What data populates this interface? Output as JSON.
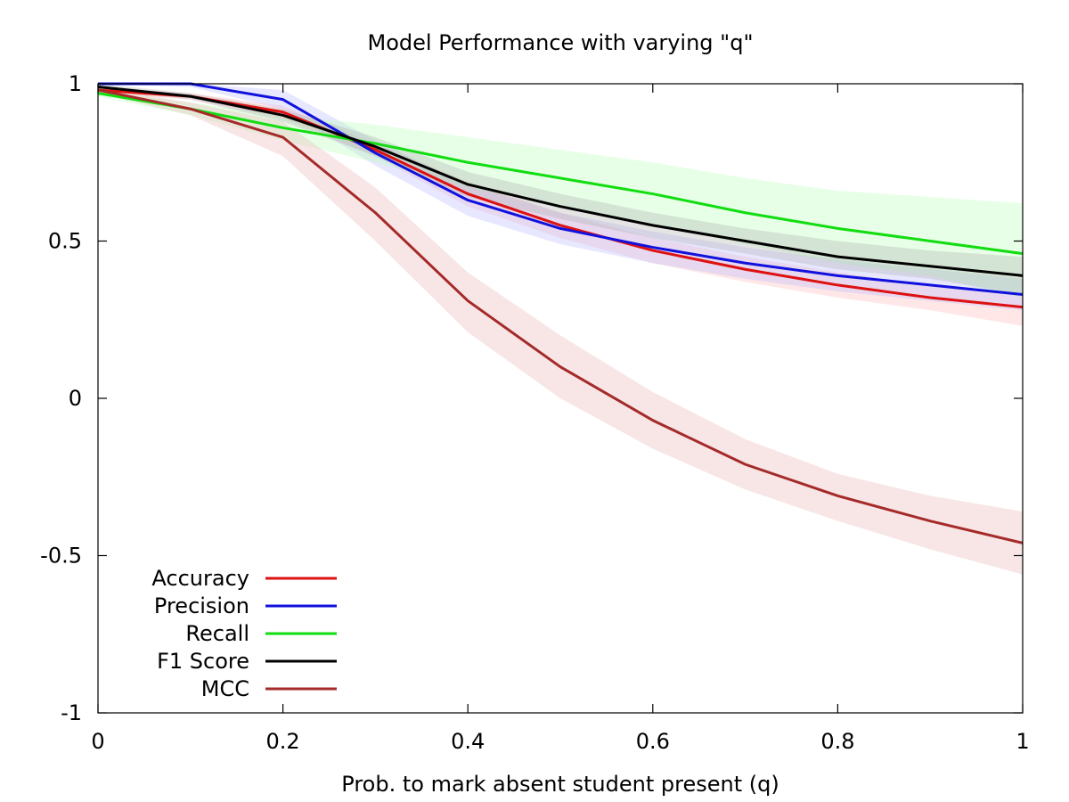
{
  "chart_data": {
    "type": "line",
    "title": "Model Performance with varying \"q\"",
    "xlabel": "Prob. to mark absent student present (q)",
    "ylabel": "",
    "xlim": [
      0,
      1
    ],
    "ylim": [
      -1,
      1
    ],
    "x_ticks": [
      0,
      0.2,
      0.4,
      0.6,
      0.8,
      1
    ],
    "x_tick_labels": [
      "0",
      "0.2",
      "0.4",
      "0.6",
      "0.8",
      "1"
    ],
    "y_ticks": [
      1,
      0.5,
      0,
      -0.5,
      -1
    ],
    "y_tick_labels": [
      "1",
      "0.5",
      "0",
      "-0.5",
      "-1"
    ],
    "legend_position": "bottom-left",
    "grid": false,
    "x": [
      0,
      0.1,
      0.2,
      0.3,
      0.4,
      0.5,
      0.6,
      0.7,
      0.8,
      0.9,
      1.0
    ],
    "series": [
      {
        "name": "Accuracy",
        "color": "#dd1111",
        "band_color": "#ffb3b3",
        "values": [
          0.98,
          0.96,
          0.91,
          0.79,
          0.65,
          0.55,
          0.47,
          0.41,
          0.36,
          0.32,
          0.29
        ],
        "band_low": [
          0.97,
          0.95,
          0.89,
          0.77,
          0.61,
          0.51,
          0.43,
          0.37,
          0.32,
          0.28,
          0.23
        ],
        "band_high": [
          0.99,
          0.97,
          0.93,
          0.81,
          0.69,
          0.59,
          0.51,
          0.45,
          0.4,
          0.36,
          0.33
        ]
      },
      {
        "name": "Precision",
        "color": "#1111dd",
        "band_color": "#b3b3ff",
        "values": [
          1.0,
          1.0,
          0.95,
          0.78,
          0.63,
          0.54,
          0.48,
          0.43,
          0.39,
          0.36,
          0.33
        ],
        "band_low": [
          1.0,
          0.99,
          0.92,
          0.74,
          0.58,
          0.49,
          0.43,
          0.38,
          0.34,
          0.31,
          0.28
        ],
        "band_high": [
          1.0,
          1.0,
          0.98,
          0.82,
          0.68,
          0.59,
          0.53,
          0.48,
          0.44,
          0.41,
          0.38
        ]
      },
      {
        "name": "Recall",
        "color": "#11dd11",
        "band_color": "#b3ffb3",
        "values": [
          0.97,
          0.92,
          0.86,
          0.81,
          0.75,
          0.7,
          0.65,
          0.59,
          0.54,
          0.5,
          0.46
        ],
        "band_low": [
          0.96,
          0.9,
          0.82,
          0.75,
          0.67,
          0.61,
          0.55,
          0.49,
          0.43,
          0.39,
          0.32
        ],
        "band_high": [
          0.98,
          0.94,
          0.9,
          0.87,
          0.83,
          0.79,
          0.75,
          0.7,
          0.66,
          0.64,
          0.62
        ]
      },
      {
        "name": "F1 Score",
        "color": "#000000",
        "band_color": "#aaaaaa",
        "values": [
          0.99,
          0.96,
          0.9,
          0.8,
          0.68,
          0.61,
          0.55,
          0.5,
          0.45,
          0.42,
          0.39
        ],
        "band_low": [
          0.98,
          0.95,
          0.88,
          0.77,
          0.64,
          0.57,
          0.51,
          0.46,
          0.41,
          0.38,
          0.33
        ],
        "band_high": [
          1.0,
          0.97,
          0.92,
          0.83,
          0.72,
          0.65,
          0.59,
          0.54,
          0.5,
          0.47,
          0.45
        ]
      },
      {
        "name": "MCC",
        "color": "#a52a2a",
        "band_color": "#e8b0b0",
        "values": [
          0.98,
          0.92,
          0.83,
          0.59,
          0.31,
          0.1,
          -0.07,
          -0.21,
          -0.31,
          -0.39,
          -0.46
        ],
        "band_low": [
          0.97,
          0.9,
          0.77,
          0.5,
          0.21,
          0.0,
          -0.16,
          -0.29,
          -0.39,
          -0.48,
          -0.56
        ],
        "band_high": [
          0.99,
          0.94,
          0.88,
          0.67,
          0.4,
          0.2,
          0.02,
          -0.13,
          -0.24,
          -0.31,
          -0.36
        ]
      }
    ]
  }
}
